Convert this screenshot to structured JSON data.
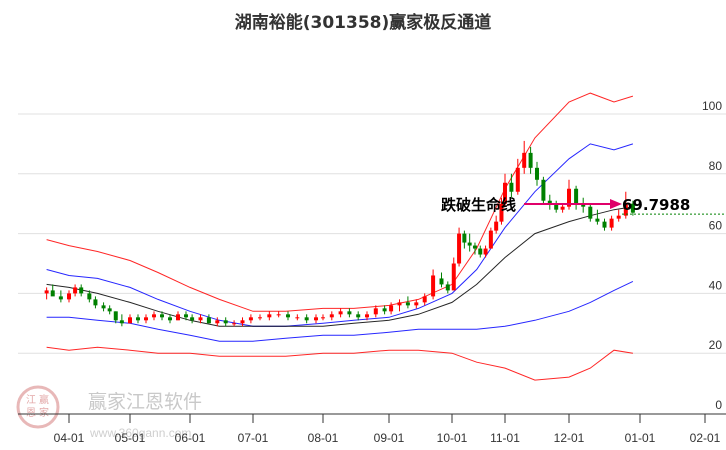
{
  "title": "湖南裕能(301358)赢家极反通道",
  "watermark": {
    "brand": "赢家江恩软件",
    "url": "www.360gann.com",
    "seal": [
      "江",
      "赢",
      "恩",
      "家"
    ]
  },
  "annotation": {
    "label": "跌破生命线",
    "value": "69.7988"
  },
  "colors": {
    "up": "#ff0000",
    "down": "#008000",
    "outer_band": "#ff0000",
    "inner_band": "#0000ff",
    "mid_line": "#000000",
    "arrow": "#e0006a",
    "dotted": "#008000",
    "grid": "#e0e0e0"
  },
  "chart_data": {
    "type": "candlestick",
    "title": "湖南裕能(301358)赢家极反通道",
    "xlabel": "",
    "ylabel": "",
    "ylim": [
      0,
      105
    ],
    "y_ticks": [
      0,
      20,
      40,
      60,
      80,
      100
    ],
    "x_ticks": [
      "04-01",
      "05-01",
      "06-01",
      "07-01",
      "08-01",
      "09-01",
      "10-01",
      "11-01",
      "12-01",
      "01-01",
      "02-01"
    ],
    "grid": true,
    "legend": null,
    "annotations": [
      {
        "text": "跌破生命线",
        "value": 69.7988,
        "type": "arrow-right"
      }
    ],
    "reference_line": {
      "value": 66.5,
      "style": "dotted",
      "color": "#008000"
    },
    "series": [
      {
        "name": "outer_upper",
        "color": "#ff0000",
        "x": [
          "03-20",
          "04-01",
          "04-15",
          "05-01",
          "05-15",
          "06-01",
          "06-15",
          "07-01",
          "07-15",
          "08-01",
          "08-15",
          "09-01",
          "09-15",
          "10-01",
          "10-15",
          "11-01",
          "11-15",
          "12-01",
          "12-10",
          "12-20",
          "12-28"
        ],
        "values": [
          58,
          56,
          54,
          51,
          47,
          42,
          38,
          34,
          34,
          35,
          35,
          36,
          38,
          43,
          55,
          75,
          92,
          104,
          107,
          104,
          106
        ]
      },
      {
        "name": "inner_upper",
        "color": "#0000ff",
        "x": [
          "03-20",
          "04-01",
          "04-15",
          "05-01",
          "05-15",
          "06-01",
          "06-15",
          "07-01",
          "07-15",
          "08-01",
          "08-15",
          "09-01",
          "09-15",
          "10-01",
          "10-15",
          "11-01",
          "11-15",
          "12-01",
          "12-10",
          "12-20",
          "12-28"
        ],
        "values": [
          48,
          46,
          45,
          42,
          38,
          34,
          31,
          29,
          29,
          30,
          31,
          32,
          35,
          40,
          48,
          62,
          74,
          85,
          90,
          88,
          90
        ]
      },
      {
        "name": "middle",
        "color": "#000000",
        "x": [
          "03-20",
          "04-01",
          "04-15",
          "05-01",
          "05-15",
          "06-01",
          "06-15",
          "07-01",
          "07-15",
          "08-01",
          "08-15",
          "09-01",
          "09-15",
          "10-01",
          "10-15",
          "11-01",
          "11-15",
          "12-01",
          "12-10",
          "12-20",
          "12-28"
        ],
        "values": [
          43,
          42,
          40,
          37,
          34,
          31,
          29,
          29,
          29,
          29,
          30,
          31,
          33,
          37,
          43,
          52,
          60,
          64,
          66,
          68,
          69
        ]
      },
      {
        "name": "inner_lower",
        "color": "#0000ff",
        "x": [
          "03-20",
          "04-01",
          "04-15",
          "05-01",
          "05-15",
          "06-01",
          "06-15",
          "07-01",
          "07-15",
          "08-01",
          "08-15",
          "09-01",
          "09-15",
          "10-01",
          "10-15",
          "11-01",
          "11-15",
          "12-01",
          "12-10",
          "12-20",
          "12-28"
        ],
        "values": [
          32,
          32,
          31,
          30,
          28,
          26,
          24,
          24,
          25,
          26,
          26,
          27,
          28,
          28,
          28,
          29,
          31,
          34,
          37,
          41,
          44
        ]
      },
      {
        "name": "outer_lower",
        "color": "#ff0000",
        "x": [
          "03-20",
          "04-01",
          "04-15",
          "05-01",
          "05-15",
          "06-01",
          "06-15",
          "07-01",
          "07-15",
          "08-01",
          "08-15",
          "09-01",
          "09-15",
          "10-01",
          "10-15",
          "11-01",
          "11-15",
          "12-01",
          "12-10",
          "12-20",
          "12-28"
        ],
        "values": [
          22,
          21,
          22,
          21,
          20,
          20,
          19,
          19,
          19,
          20,
          20,
          21,
          21,
          20,
          17,
          15,
          11,
          12,
          15,
          21,
          20
        ]
      }
    ],
    "candles": [
      [
        "03-20",
        40,
        42,
        38,
        41
      ],
      [
        "03-23",
        41,
        43,
        40,
        39
      ],
      [
        "03-27",
        39,
        41,
        37,
        38
      ],
      [
        "03-31",
        38,
        41,
        37,
        40
      ],
      [
        "04-04",
        40,
        43,
        39,
        42
      ],
      [
        "04-07",
        42,
        43,
        39,
        40
      ],
      [
        "04-11",
        40,
        41,
        37,
        38
      ],
      [
        "04-14",
        38,
        39,
        35,
        36
      ],
      [
        "04-18",
        36,
        37,
        34,
        35
      ],
      [
        "04-21",
        35,
        36,
        33,
        34
      ],
      [
        "04-24",
        34,
        34,
        30,
        31
      ],
      [
        "04-27",
        31,
        33,
        29,
        30
      ],
      [
        "05-01",
        30,
        33,
        30,
        32
      ],
      [
        "05-05",
        32,
        33,
        30,
        31
      ],
      [
        "05-09",
        31,
        33,
        30,
        32
      ],
      [
        "05-13",
        32,
        34,
        31,
        33
      ],
      [
        "05-17",
        33,
        34,
        31,
        32
      ],
      [
        "05-21",
        32,
        33,
        30,
        31
      ],
      [
        "05-25",
        31,
        34,
        31,
        33
      ],
      [
        "05-29",
        33,
        34,
        31,
        32
      ],
      [
        "06-02",
        32,
        33,
        30,
        31
      ],
      [
        "06-06",
        31,
        33,
        30,
        32
      ],
      [
        "06-10",
        32,
        33,
        30,
        30
      ],
      [
        "06-14",
        30,
        32,
        29,
        31
      ],
      [
        "06-18",
        31,
        32,
        29,
        30
      ],
      [
        "06-22",
        30,
        31,
        29,
        30
      ],
      [
        "06-26",
        30,
        32,
        29,
        31
      ],
      [
        "06-30",
        31,
        33,
        30,
        32
      ],
      [
        "07-04",
        32,
        33,
        31,
        32
      ],
      [
        "07-08",
        32,
        34,
        31,
        33
      ],
      [
        "07-12",
        33,
        34,
        32,
        33
      ],
      [
        "07-16",
        33,
        34,
        31,
        32
      ],
      [
        "07-20",
        32,
        33,
        31,
        32
      ],
      [
        "07-24",
        32,
        33,
        30,
        31
      ],
      [
        "07-28",
        31,
        33,
        30,
        32
      ],
      [
        "08-01",
        32,
        33,
        31,
        32
      ],
      [
        "08-05",
        32,
        34,
        31,
        33
      ],
      [
        "08-09",
        33,
        35,
        32,
        34
      ],
      [
        "08-13",
        34,
        35,
        32,
        33
      ],
      [
        "08-17",
        33,
        34,
        31,
        32
      ],
      [
        "08-21",
        32,
        34,
        31,
        33
      ],
      [
        "08-25",
        33,
        36,
        32,
        35
      ],
      [
        "08-29",
        35,
        36,
        33,
        34
      ],
      [
        "09-02",
        34,
        37,
        33,
        36
      ],
      [
        "09-06",
        36,
        38,
        34,
        37
      ],
      [
        "09-10",
        37,
        39,
        35,
        36
      ],
      [
        "09-14",
        36,
        38,
        35,
        37
      ],
      [
        "09-18",
        37,
        40,
        36,
        39
      ],
      [
        "09-22",
        39,
        48,
        38,
        46
      ],
      [
        "09-26",
        45,
        47,
        42,
        43
      ],
      [
        "09-29",
        43,
        44,
        40,
        41
      ],
      [
        "10-02",
        41,
        52,
        41,
        50
      ],
      [
        "10-05",
        50,
        62,
        49,
        60
      ],
      [
        "10-08",
        60,
        61,
        55,
        57
      ],
      [
        "10-11",
        57,
        60,
        54,
        56
      ],
      [
        "10-14",
        56,
        57,
        53,
        55
      ],
      [
        "10-17",
        55,
        56,
        52,
        53
      ],
      [
        "10-20",
        53,
        56,
        52,
        55
      ],
      [
        "10-23",
        55,
        62,
        55,
        61
      ],
      [
        "10-26",
        61,
        66,
        60,
        64
      ],
      [
        "10-29",
        64,
        72,
        63,
        70
      ],
      [
        "11-01",
        70,
        80,
        69,
        77
      ],
      [
        "11-04",
        77,
        80,
        72,
        74
      ],
      [
        "11-07",
        74,
        85,
        73,
        82
      ],
      [
        "11-10",
        82,
        91,
        80,
        87
      ],
      [
        "11-13",
        87,
        89,
        80,
        82
      ],
      [
        "11-16",
        82,
        84,
        76,
        78
      ],
      [
        "11-19",
        78,
        79,
        70,
        71
      ],
      [
        "11-22",
        71,
        73,
        68,
        70
      ],
      [
        "11-25",
        70,
        71,
        67,
        68
      ],
      [
        "11-28",
        68,
        70,
        67,
        69
      ],
      [
        "12-01",
        69,
        78,
        68,
        75
      ],
      [
        "12-04",
        75,
        76,
        68,
        70
      ],
      [
        "12-07",
        70,
        72,
        67,
        69
      ],
      [
        "12-10",
        69,
        70,
        64,
        65
      ],
      [
        "12-13",
        65,
        68,
        63,
        64
      ],
      [
        "12-16",
        64,
        65,
        61,
        62
      ],
      [
        "12-19",
        62,
        66,
        61,
        65
      ],
      [
        "12-22",
        65,
        68,
        64,
        66
      ],
      [
        "12-25",
        66,
        74,
        65,
        70
      ],
      [
        "12-28",
        70,
        71,
        66,
        67
      ]
    ]
  }
}
